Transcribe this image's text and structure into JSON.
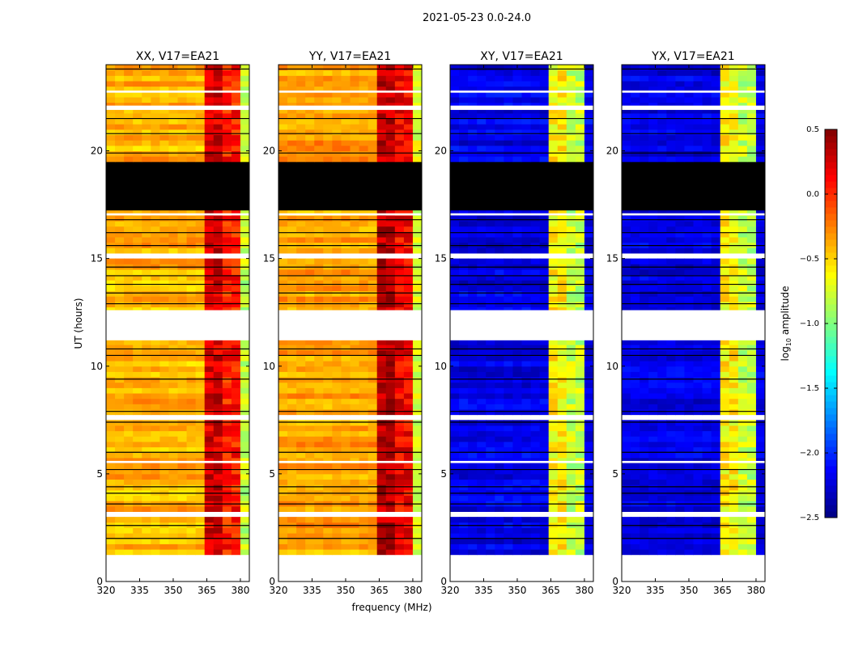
{
  "chart_data": {
    "type": "heatmap",
    "title": "2021-05-23 0.0-24.0",
    "xlabel": "frequency (MHz)",
    "ylabel": "UT (hours)",
    "xlim": [
      320,
      384
    ],
    "ylim": [
      0,
      24
    ],
    "xticks": [
      "320",
      "335",
      "350",
      "365",
      "380"
    ],
    "xtick_values": [
      320,
      335,
      350,
      365,
      380
    ],
    "yticks": [
      "0",
      "5",
      "10",
      "15",
      "20"
    ],
    "ytick_values": [
      0,
      5,
      10,
      15,
      20
    ],
    "panels": [
      {
        "title": "XX, V17=EA21",
        "base_log_amp": -0.4,
        "rfi_log_amp": 0.05
      },
      {
        "title": "YY, V17=EA21",
        "base_log_amp": -0.35,
        "rfi_log_amp": 0.15
      },
      {
        "title": "XY, V17=EA21",
        "base_log_amp": -2.2,
        "rfi_log_amp": -0.8
      },
      {
        "title": "YX, V17=EA21",
        "base_log_amp": -2.2,
        "rfi_log_amp": -0.8
      }
    ],
    "rfi_band_mhz": [
      362,
      380
    ],
    "rfi_channels_mhz": [
      365,
      371,
      376
    ],
    "flagged_hours": [
      [
        0.1,
        1.2
      ],
      [
        11.2,
        12.6
      ],
      [
        21.9,
        22.1
      ],
      [
        17.0,
        17.1
      ],
      [
        5.5,
        5.6
      ],
      [
        7.6,
        7.7
      ],
      [
        3.1,
        3.2
      ],
      [
        15.1,
        15.2
      ],
      [
        22.7,
        22.8
      ]
    ],
    "zero_hours": [
      [
        17.2,
        19.5
      ],
      [
        0.0,
        0.08
      ],
      [
        1.2,
        1.28
      ]
    ],
    "separator_hours": [
      2.0,
      2.6,
      3.6,
      4.1,
      4.4,
      5.2,
      6.0,
      7.4,
      7.9,
      9.4,
      10.5,
      10.8,
      12.9,
      13.4,
      13.8,
      14.2,
      14.6,
      15.6,
      16.2,
      16.8,
      19.9,
      20.8,
      21.5,
      23.8
    ],
    "colorbar": {
      "label": "log10 amplitude",
      "range": [
        -2.5,
        0.5
      ],
      "ticks": [
        "0.5",
        "0.0",
        "−0.5",
        "−1.0",
        "−1.5",
        "−2.0",
        "−2.5"
      ],
      "tick_values": [
        0.5,
        0.0,
        -0.5,
        -1.0,
        -1.5,
        -2.0,
        -2.5
      ]
    }
  }
}
